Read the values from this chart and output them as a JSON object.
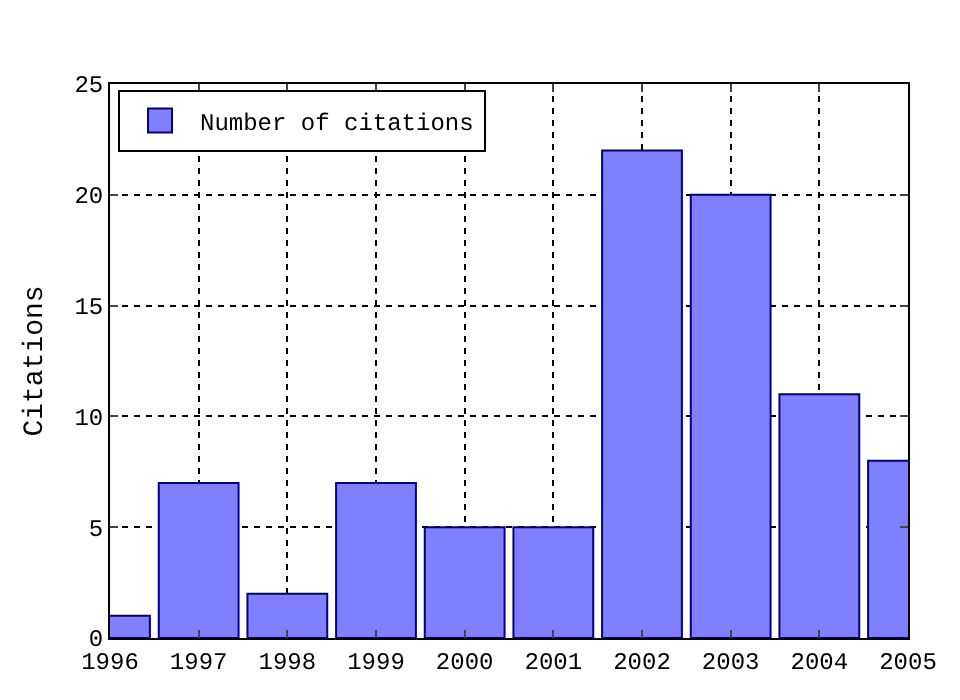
{
  "chart_data": {
    "type": "bar",
    "ylabel": "Citations",
    "x": [
      1996,
      1997,
      1998,
      1999,
      2000,
      2001,
      2002,
      2003,
      2004,
      2005
    ],
    "series": [
      {
        "name": "Number of citations",
        "color": "#8080ff",
        "values": [
          1,
          7,
          2,
          7,
          5,
          5,
          22,
          20,
          11,
          8
        ]
      }
    ],
    "xlim": [
      1996,
      2005
    ],
    "xticks": [
      1996,
      1997,
      1998,
      1999,
      2000,
      2001,
      2002,
      2003,
      2004,
      2005
    ],
    "ylim": [
      0,
      25
    ],
    "yticks": [
      0,
      5,
      10,
      15,
      20,
      25
    ],
    "grid": true,
    "legend": "top left"
  }
}
